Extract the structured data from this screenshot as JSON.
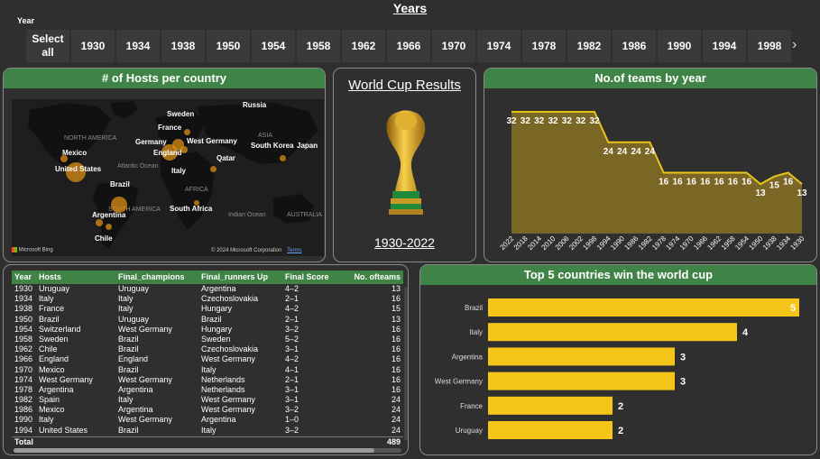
{
  "slicer": {
    "title": "Years",
    "label": "Year",
    "select_all": "Select all",
    "years": [
      "1930",
      "1934",
      "1938",
      "1950",
      "1954",
      "1958",
      "1962",
      "1966",
      "1970",
      "1974",
      "1978",
      "1982",
      "1986",
      "1990",
      "1994",
      "1998"
    ],
    "scroll_icon": "chevron-right-icon"
  },
  "map": {
    "title": "# of Hosts per country",
    "labels": [
      "Russia",
      "Sweden",
      "France",
      "Germany",
      "England",
      "West Germany",
      "Qatar",
      "Italy",
      "South Korea",
      "Japan",
      "Mexico",
      "United States",
      "Brazil",
      "Argentina",
      "Chile",
      "South Africa"
    ],
    "regions": [
      "NORTH AMERICA",
      "Atlantic Ocean",
      "SOUTH AMERICA",
      "AFRICA",
      "ASIA",
      "Indian Ocean",
      "AUSTRALIA"
    ],
    "bing": "Microsoft Bing",
    "copyright": "© 2024 Microsoft Corporation",
    "terms": "Terms"
  },
  "results": {
    "title": "World Cup Results",
    "range": "1930-2022",
    "trophy_icon": "trophy-icon"
  },
  "teams_chart": {
    "title": "No.of teams by year"
  },
  "chart_data": [
    {
      "type": "area",
      "title": "No.of teams by year",
      "x": [
        "2022",
        "2018",
        "2014",
        "2010",
        "2006",
        "2002",
        "1998",
        "1994",
        "1990",
        "1986",
        "1982",
        "1978",
        "1974",
        "1970",
        "1966",
        "1962",
        "1958",
        "1954",
        "1950",
        "1938",
        "1934",
        "1930"
      ],
      "values": [
        32,
        32,
        32,
        32,
        32,
        32,
        32,
        24,
        24,
        24,
        24,
        16,
        16,
        16,
        16,
        16,
        16,
        16,
        13,
        15,
        16,
        13
      ],
      "color": "#e8c41a",
      "fill": "#7a6625"
    },
    {
      "type": "bar",
      "orientation": "horizontal",
      "title": "Top 5 countries win the world cup",
      "categories": [
        "Brazil",
        "Italy",
        "Argentina",
        "West Germany",
        "France",
        "Uruguay"
      ],
      "values": [
        5,
        4,
        3,
        3,
        2,
        2
      ],
      "xlim": [
        0,
        5
      ],
      "color": "#f5c518"
    }
  ],
  "table": {
    "columns": [
      "Year",
      "Hosts",
      "Final_champions",
      "Final_runners Up",
      "Final Score",
      "No. ofteams"
    ],
    "rows": [
      [
        "1930",
        "Uruguay",
        "Uruguay",
        "Argentina",
        "4–2",
        "13"
      ],
      [
        "1934",
        "Italy",
        "Italy",
        "Czechoslovakia",
        "2–1",
        "16"
      ],
      [
        "1938",
        "France",
        "Italy",
        "Hungary",
        "4–2",
        "15"
      ],
      [
        "1950",
        "Brazil",
        "Uruguay",
        "Brazil",
        "2–1",
        "13"
      ],
      [
        "1954",
        "Switzerland",
        "West Germany",
        "Hungary",
        "3–2",
        "16"
      ],
      [
        "1958",
        "Sweden",
        "Brazil",
        "Sweden",
        "5–2",
        "16"
      ],
      [
        "1962",
        "Chile",
        "Brazil",
        "Czechoslovakia",
        "3–1",
        "16"
      ],
      [
        "1966",
        "England",
        "England",
        "West Germany",
        "4–2",
        "16"
      ],
      [
        "1970",
        "Mexico",
        "Brazil",
        "Italy",
        "4–1",
        "16"
      ],
      [
        "1974",
        "West Germany",
        "West Germany",
        "Netherlands",
        "2–1",
        "16"
      ],
      [
        "1978",
        "Argentina",
        "Argentina",
        "Netherlands",
        "3–1",
        "16"
      ],
      [
        "1982",
        "Spain",
        "Italy",
        "West Germany",
        "3–1",
        "24"
      ],
      [
        "1986",
        "Mexico",
        "Argentina",
        "West Germany",
        "3–2",
        "24"
      ],
      [
        "1990",
        "Italy",
        "West Germany",
        "Argentina",
        "1–0",
        "24"
      ],
      [
        "1994",
        "United States",
        "Brazil",
        "Italy",
        "3–2",
        "24"
      ]
    ],
    "total_label": "Total",
    "total_value": "489"
  },
  "top5": {
    "title": "Top 5 countries win the world cup"
  }
}
